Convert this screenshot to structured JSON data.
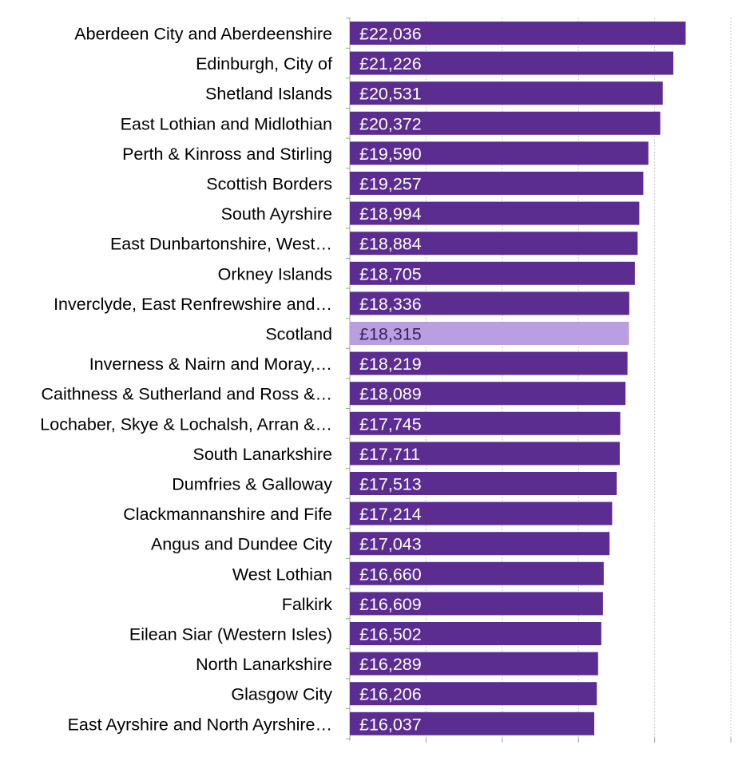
{
  "chart_data": {
    "type": "bar",
    "orientation": "horizontal",
    "title": "",
    "xlabel": "",
    "ylabel": "",
    "categories": [
      "Aberdeen City and Aberdeenshire",
      "Edinburgh, City of",
      "Shetland Islands",
      "East Lothian and Midlothian",
      "Perth & Kinross and Stirling",
      "Scottish Borders",
      "South Ayrshire",
      "East Dunbartonshire, West…",
      "Orkney Islands",
      "Inverclyde, East Renfrewshire and…",
      "Scotland",
      "Inverness & Nairn and Moray,…",
      "Caithness & Sutherland and Ross &…",
      "Lochaber, Skye & Lochalsh, Arran &…",
      "South Lanarkshire",
      "Dumfries & Galloway",
      "Clackmannanshire and Fife",
      "Angus and Dundee City",
      "West Lothian",
      "Falkirk",
      "Eilean Siar (Western Isles)",
      "North Lanarkshire",
      "Glasgow City",
      "East Ayrshire and North Ayrshire…"
    ],
    "values": [
      22036,
      21226,
      20531,
      20372,
      19590,
      19257,
      18994,
      18884,
      18705,
      18336,
      18315,
      18219,
      18089,
      17745,
      17711,
      17513,
      17214,
      17043,
      16660,
      16609,
      16502,
      16289,
      16206,
      16037
    ],
    "data_labels": [
      "£22,036",
      "£21,226",
      "£20,531",
      "£20,372",
      "£19,590",
      "£19,257",
      "£18,994",
      "£18,884",
      "£18,705",
      "£18,336",
      "£18,315",
      "£18,219",
      "£18,089",
      "£17,745",
      "£17,711",
      "£17,513",
      "£17,214",
      "£17,043",
      "£16,660",
      "£16,609",
      "£16,502",
      "£16,289",
      "£16,206",
      "£16,037"
    ],
    "highlight_category": "Scotland",
    "xlim": [
      0,
      25000
    ],
    "grid": "vertical, dotted, every 5000",
    "axis_tick_labels_visible": false,
    "legend": "none",
    "colors": {
      "bar": "#5C2D91",
      "highlight_bar": "#B99FE0",
      "bar_label_text": "#FFFFFF",
      "highlight_label_text": "#3A1F5C",
      "category_text": "#000000",
      "gridline": "#C8C8C8",
      "axis": "#A0A0A0"
    }
  }
}
